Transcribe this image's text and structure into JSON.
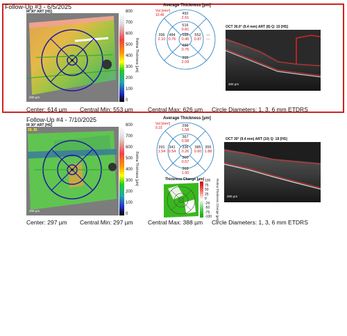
{
  "visit1": {
    "header": "Follow-Up #3 - 6/5/2025",
    "ir_label": "IR 30° ART [HS]",
    "scale_ticks": [
      "800",
      "700",
      "600",
      "500",
      "400",
      "300",
      "200",
      "100",
      "0"
    ],
    "scale_title": "Retina Thickness [µm]",
    "scalebar": "200 µm",
    "grid_title": "Average Thickness [µm]",
    "vol_label": "Vol [mm³]",
    "vol_value": "10.46",
    "cells": {
      "top_outer": [
        "492",
        "2.61"
      ],
      "top_inner": [
        "516",
        "0.81"
      ],
      "left_outer": [
        "396",
        "2.10"
      ],
      "left_inner": [
        "484",
        "0.76"
      ],
      "center": [
        "588",
        "0.46"
      ],
      "right_inner": [
        "552",
        "0.87"
      ],
      "right_outer": [
        "---",
        "---"
      ],
      "bottom_inner": [
        "486",
        "0.76"
      ],
      "bottom_outer": [
        "395",
        "2.09"
      ]
    },
    "oct_title": "OCT 30.0° (9.4 mm) ART (8) Q: 15 [HS]",
    "oct_scalebar": "200 µm",
    "footer": {
      "center": "Center: 614 µm",
      "central_min": "Central Min: 553 µm",
      "central_max": "Central Max: 626 µm",
      "circle": "Circle Diameters:  1, 3, 6 mm ETDRS"
    }
  },
  "visit2": {
    "header": "Follow-Up #4 - 7/10/2025",
    "ir_label": "IR 30° ART [HS]",
    "map_badge": "29, 81",
    "scale_ticks": [
      "800",
      "700",
      "600",
      "500",
      "400",
      "300",
      "200",
      "100",
      "0"
    ],
    "scale_title": "Retina Thickness [µm]",
    "scalebar": "200 µm",
    "grid_title": "Average Thickness [µm]",
    "vol_label": "Vol [mm³]",
    "vol_value": "9.15",
    "cells": {
      "top_outer": [
        "298",
        "1.58"
      ],
      "top_inner": [
        "367",
        "0.58"
      ],
      "left_outer": [
        "291",
        "1.54"
      ],
      "left_inner": [
        "341",
        "0.54"
      ],
      "center": [
        "336",
        "0.26"
      ],
      "right_inner": [
        "385",
        "0.60"
      ],
      "right_outer": [
        "355",
        "1.88"
      ],
      "bottom_inner": [
        "360",
        "0.57"
      ],
      "bottom_outer": [
        "303",
        "1.60"
      ]
    },
    "change_title": "Thickness Change [µm]",
    "change_ticks": [
      "100",
      "75",
      "50",
      "25",
      "0",
      "-25",
      "-50",
      "-75",
      "-100"
    ],
    "change_scale_title": "Retina Thickness Change [µm]",
    "oct_title": "OCT 30° (9.4 mm) ART (10) Q: 18 [HS]",
    "oct_scalebar": "200 µm",
    "footer": {
      "center": "Center: 297 µm",
      "central_min": "Central Min: 297 µm",
      "central_max": "Central Max: 388 µm",
      "circle": "Circle Diameters:  1, 3, 6 mm ETDRS"
    }
  }
}
